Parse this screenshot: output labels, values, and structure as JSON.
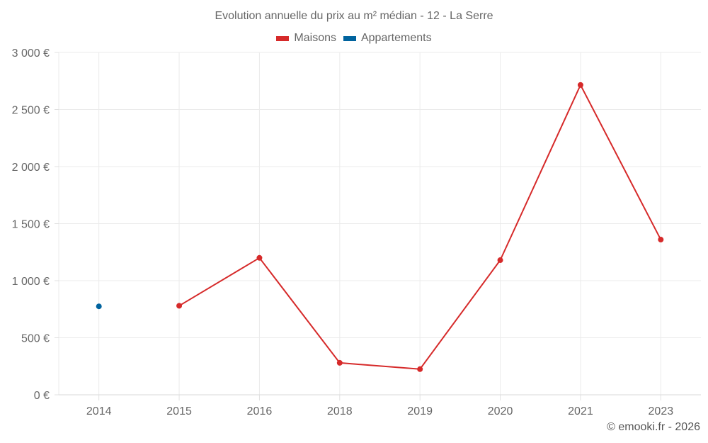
{
  "chart_data": {
    "type": "line",
    "title": "Evolution annuelle du prix au m² médian - 12 - La Serre",
    "xlabel": "",
    "ylabel": "",
    "categories": [
      "2014",
      "2015",
      "2016",
      "2018",
      "2019",
      "2020",
      "2021",
      "2023"
    ],
    "series": [
      {
        "name": "Maisons",
        "color": "#d62a2a",
        "values": [
          null,
          780,
          1200,
          280,
          225,
          1180,
          2715,
          1360
        ]
      },
      {
        "name": "Appartements",
        "color": "#00639e",
        "values": [
          775,
          null,
          null,
          null,
          null,
          null,
          null,
          null
        ]
      }
    ],
    "ylim": [
      0,
      3000
    ],
    "yticks": [
      0,
      500,
      1000,
      1500,
      2000,
      2500,
      3000
    ],
    "ytick_labels": [
      "0 €",
      "500 €",
      "1 000 €",
      "1 500 €",
      "2 000 €",
      "2 500 €",
      "3 000 €"
    ],
    "grid": true,
    "legend_position": "top"
  },
  "legend": {
    "items": [
      {
        "label": "Maisons",
        "color": "#d62a2a"
      },
      {
        "label": "Appartements",
        "color": "#00639e"
      }
    ]
  },
  "credit": "© emooki.fr - 2026"
}
